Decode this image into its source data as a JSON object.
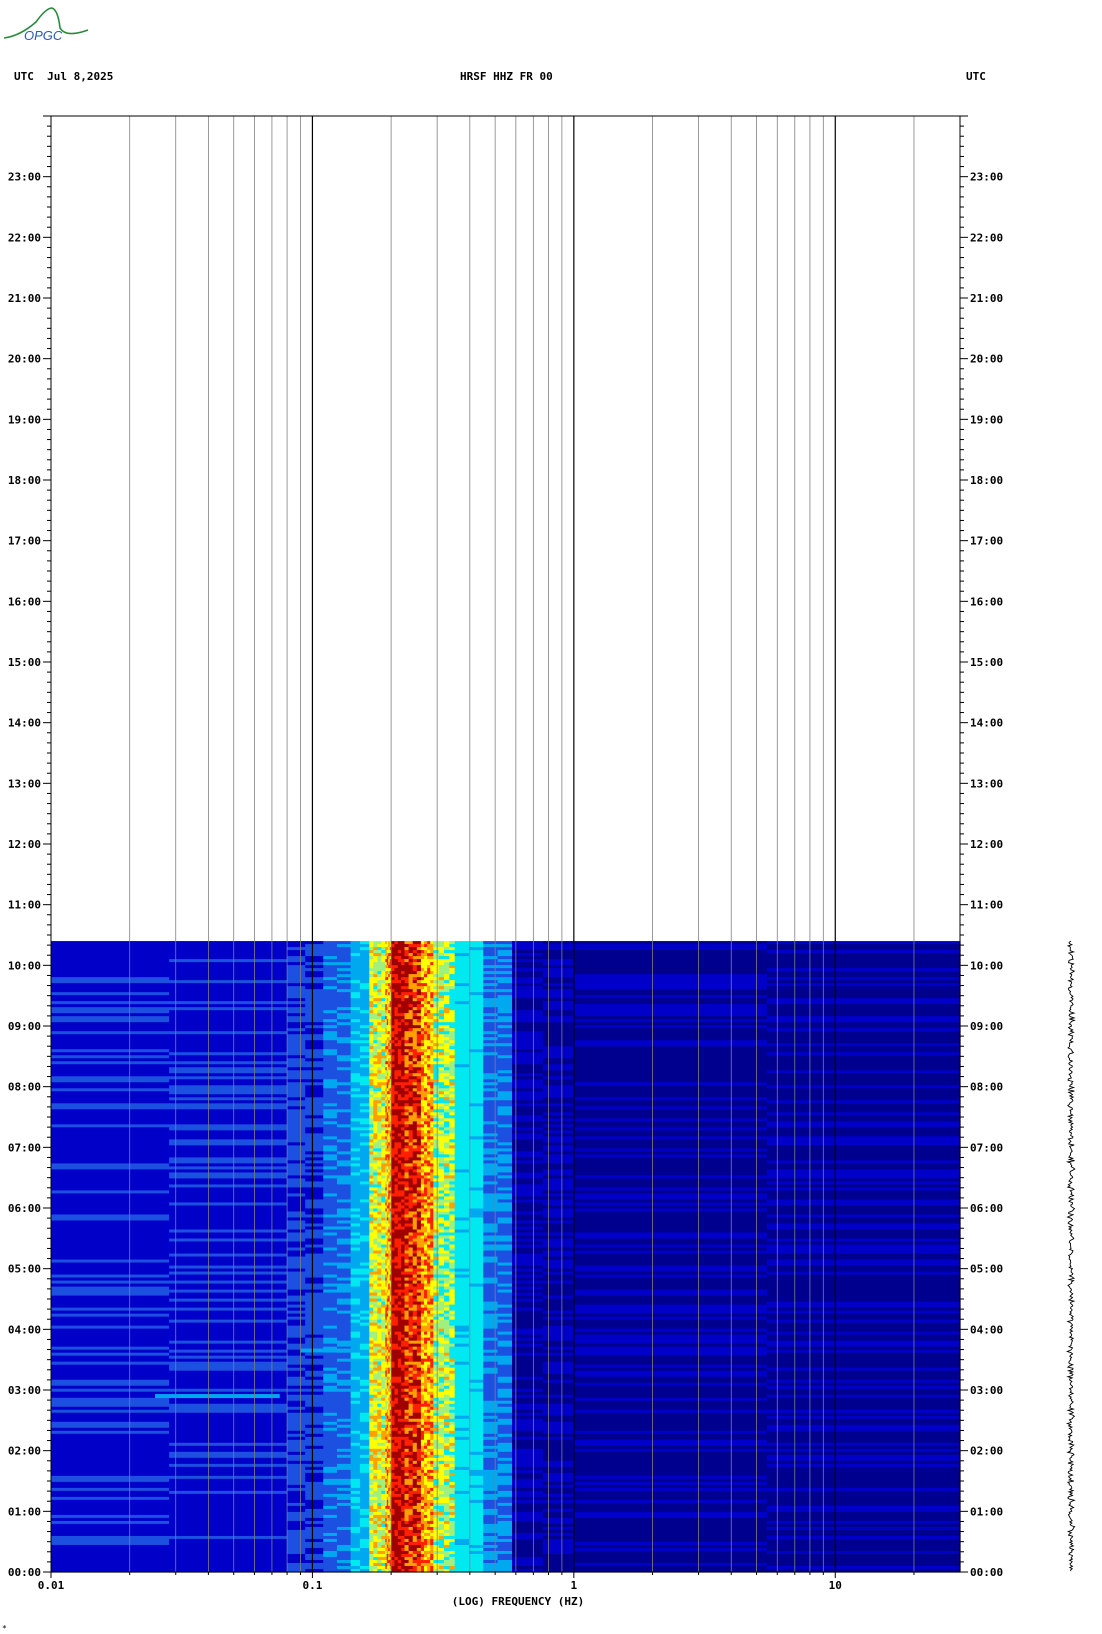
{
  "logo": {
    "text": "OPGC",
    "color": "#2a5ab0",
    "swoosh_color": "#2a8a3a"
  },
  "header": {
    "left": "UTC  Jul 8,2025",
    "title": "HRSF HHZ FR 00",
    "right": "UTC"
  },
  "colors": {
    "frame": "#000000",
    "grid_major": "#000000",
    "grid_minor": "#808080",
    "empty_area": "#ffffff",
    "colormap": [
      "#00008f",
      "#0000c8",
      "#1c50e0",
      "#00a8f0",
      "#00e8f0",
      "#a0f080",
      "#ffff00",
      "#ffa000",
      "#ff2000",
      "#a00000"
    ]
  },
  "chart_data": {
    "type": "heatmap",
    "title": "HRSF HHZ FR 00",
    "xlabel": "(LOG) FREQUENCY (HZ)",
    "ylabel": "UTC",
    "x_scale": "log",
    "xlim": [
      0.01,
      30
    ],
    "x_tick_labels": [
      {
        "value": 0.01,
        "label": "0.01"
      },
      {
        "value": 0.1,
        "label": "0.1"
      },
      {
        "value": 1,
        "label": "1"
      },
      {
        "value": 10,
        "label": "10"
      }
    ],
    "ylim_hours": [
      0,
      24
    ],
    "y_tick_labels": [
      "00:00",
      "01:00",
      "02:00",
      "03:00",
      "04:00",
      "05:00",
      "06:00",
      "07:00",
      "08:00",
      "09:00",
      "10:00",
      "11:00",
      "12:00",
      "13:00",
      "14:00",
      "15:00",
      "16:00",
      "17:00",
      "18:00",
      "19:00",
      "20:00",
      "21:00",
      "22:00",
      "23:00"
    ],
    "data_end_hour": 10.4,
    "grid": true,
    "grid_frequencies": [
      0.02,
      0.03,
      0.04,
      0.05,
      0.06,
      0.07,
      0.08,
      0.09,
      0.1,
      0.2,
      0.3,
      0.4,
      0.5,
      0.6,
      0.7,
      0.8,
      0.9,
      1,
      2,
      3,
      4,
      5,
      6,
      7,
      8,
      9,
      10,
      20
    ],
    "spectrum_bands": [
      {
        "from_hz": 0.01,
        "to_hz": 0.08,
        "level": 0.18
      },
      {
        "from_hz": 0.08,
        "to_hz": 0.11,
        "level": 0.22
      },
      {
        "from_hz": 0.11,
        "to_hz": 0.14,
        "level": 0.28
      },
      {
        "from_hz": 0.14,
        "to_hz": 0.165,
        "level": 0.38
      },
      {
        "from_hz": 0.165,
        "to_hz": 0.19,
        "level": 0.62
      },
      {
        "from_hz": 0.19,
        "to_hz": 0.2,
        "level": 0.72
      },
      {
        "from_hz": 0.2,
        "to_hz": 0.225,
        "level": 0.94
      },
      {
        "from_hz": 0.225,
        "to_hz": 0.26,
        "level": 0.86
      },
      {
        "from_hz": 0.26,
        "to_hz": 0.29,
        "level": 0.74
      },
      {
        "from_hz": 0.29,
        "to_hz": 0.35,
        "level": 0.58
      },
      {
        "from_hz": 0.35,
        "to_hz": 0.45,
        "level": 0.44
      },
      {
        "from_hz": 0.45,
        "to_hz": 0.58,
        "level": 0.3
      },
      {
        "from_hz": 0.58,
        "to_hz": 1.0,
        "level": 0.1
      },
      {
        "from_hz": 1.0,
        "to_hz": 30,
        "level": 0.08
      }
    ],
    "events": [
      {
        "hour": 2.9,
        "from_hz": 0.025,
        "to_hz": 0.075,
        "level": 0.36
      },
      {
        "hour": 3.65,
        "from_hz": 0.09,
        "to_hz": 0.14,
        "level": 0.34
      }
    ]
  },
  "footer": {
    "corner_mark": "*"
  }
}
